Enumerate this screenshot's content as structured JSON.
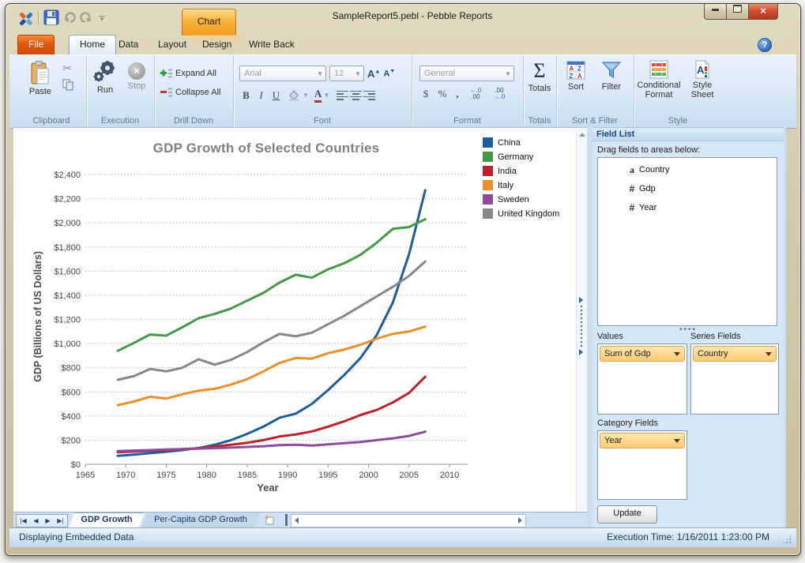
{
  "window": {
    "title": "SampleReport5.pebl - Pebble Reports"
  },
  "titlebar": {
    "contextual_tab": "Chart"
  },
  "tabs": {
    "items": [
      "File",
      "Home",
      "Data",
      "Layout",
      "Design",
      "Write Back"
    ],
    "active": "Home"
  },
  "ribbon": {
    "groups": {
      "clipboard": {
        "label": "Clipboard",
        "paste": "Paste"
      },
      "execution": {
        "label": "Execution",
        "run": "Run",
        "stop": "Stop"
      },
      "drill_down": {
        "label": "Drill Down",
        "expand_all": "Expand All",
        "collapse_all": "Collapse All"
      },
      "font": {
        "label": "Font",
        "font_name": "Arial",
        "font_size": "12",
        "bold": "B",
        "italic": "I",
        "underline": "U"
      },
      "format": {
        "label": "Format",
        "number_format": "General",
        "currency": "$",
        "percent": "%",
        "comma": ",",
        "increase_decimal_top": "←.0",
        "increase_decimal_bottom": ".00",
        "decrease_decimal_top": ".00",
        "decrease_decimal_bottom": "→.0"
      },
      "totals": {
        "label": "Totals",
        "sigma": "Σ",
        "totals": "Totals"
      },
      "sort_filter": {
        "label": "Sort & Filter",
        "sort": "Sort",
        "filter": "Filter"
      },
      "style": {
        "label": "Style",
        "conditional_format": "Conditional Format",
        "style_sheet": "Style Sheet"
      }
    }
  },
  "chart_data": {
    "type": "line",
    "title": "GDP Growth of Selected Countries",
    "xlabel": "Year",
    "ylabel": "GDP (Billions of US Dollars)",
    "xlim": [
      1965,
      2010
    ],
    "ylim": [
      0,
      2400
    ],
    "x_ticks": [
      1965,
      1970,
      1975,
      1980,
      1985,
      1990,
      1995,
      2000,
      2005,
      2010
    ],
    "y_ticks": [
      0,
      200,
      400,
      600,
      800,
      1000,
      1200,
      1400,
      1600,
      1800,
      2000,
      2200,
      2400
    ],
    "y_tick_format": "$#,##0",
    "grid": "dotted-horizontal",
    "legend_position": "right",
    "x": [
      1969,
      1971,
      1973,
      1975,
      1977,
      1979,
      1981,
      1983,
      1985,
      1987,
      1989,
      1991,
      1993,
      1995,
      1997,
      1999,
      2001,
      2003,
      2005,
      2007
    ],
    "series": [
      {
        "name": "China",
        "color": "#1F5DA0",
        "values": [
          70,
          80,
          92,
          104,
          118,
          135,
          162,
          200,
          252,
          312,
          385,
          420,
          500,
          615,
          740,
          880,
          1070,
          1340,
          1740,
          2270
        ]
      },
      {
        "name": "Germany",
        "color": "#449944",
        "values": [
          940,
          1005,
          1075,
          1065,
          1135,
          1210,
          1245,
          1290,
          1355,
          1420,
          1505,
          1570,
          1545,
          1615,
          1665,
          1735,
          1835,
          1950,
          1965,
          2030
        ]
      },
      {
        "name": "India",
        "color": "#C0202C",
        "values": [
          100,
          105,
          112,
          116,
          126,
          133,
          147,
          162,
          178,
          200,
          230,
          247,
          272,
          312,
          356,
          408,
          450,
          512,
          592,
          725
        ]
      },
      {
        "name": "Italy",
        "color": "#EC8F2B",
        "values": [
          490,
          520,
          560,
          545,
          580,
          610,
          625,
          660,
          705,
          770,
          840,
          880,
          875,
          920,
          950,
          990,
          1040,
          1080,
          1100,
          1140
        ]
      },
      {
        "name": "Sweden",
        "color": "#8F4A9B",
        "values": [
          110,
          114,
          118,
          122,
          126,
          130,
          134,
          138,
          144,
          150,
          158,
          162,
          155,
          165,
          175,
          185,
          200,
          215,
          235,
          270
        ]
      },
      {
        "name": "United Kingdom",
        "color": "#878787",
        "values": [
          700,
          730,
          790,
          770,
          800,
          870,
          825,
          865,
          930,
          1010,
          1080,
          1060,
          1090,
          1160,
          1230,
          1310,
          1390,
          1470,
          1560,
          1680
        ]
      }
    ]
  },
  "field_list": {
    "header": "Field List",
    "hint": "Drag fields to areas below:",
    "fields": [
      {
        "type": "a",
        "name": "Country"
      },
      {
        "type": "#",
        "name": "Gdp"
      },
      {
        "type": "#",
        "name": "Year"
      }
    ],
    "values_label": "Values",
    "values_selected": "Sum of Gdp",
    "series_label": "Series Fields",
    "series_selected": "Country",
    "category_label": "Category Fields",
    "category_selected": "Year",
    "update_button": "Update"
  },
  "sheet_bar": {
    "tabs": [
      {
        "label": "GDP Growth"
      },
      {
        "label": "Per-Capita GDP Growth"
      }
    ],
    "active_tab": "GDP Growth"
  },
  "status_bar": {
    "left": "Displaying Embedded Data",
    "right": "Execution Time: 1/16/2011 1:23:00 PM"
  }
}
